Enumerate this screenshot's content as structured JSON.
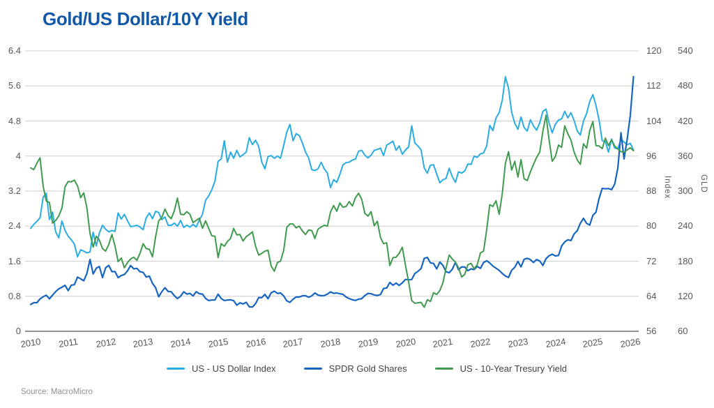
{
  "title": "Gold/US Dollar/10Y Yield",
  "source": "Source: MacroMicro",
  "colors": {
    "title": "#1159A8",
    "usd_index": "#29ACE3",
    "gld_shares": "#1565C0",
    "treasury_yield": "#3F9A4D",
    "grid": "#CECECE",
    "axis_line": "#6E6E6E",
    "tick_label": "#55575C",
    "legend_label": "#3F4248",
    "source_label": "#8A9099"
  },
  "axes": {
    "x": {
      "tick_labels": [
        "2010",
        "2011",
        "2012",
        "2013",
        "2014",
        "2015",
        "2016",
        "2017",
        "2018",
        "2019",
        "2020",
        "2021",
        "2022",
        "2023",
        "2024",
        "2025",
        "2026"
      ]
    },
    "yield": {
      "side": "left",
      "min": 0,
      "max": 6.4,
      "tick_labels": [
        "0",
        "0.8",
        "1.6",
        "2.4",
        "3.2",
        "4",
        "4.8",
        "5.6",
        "6.4"
      ]
    },
    "index": {
      "side": "right",
      "title": "Index",
      "min": 56,
      "max": 120,
      "tick_labels": [
        "56",
        "64",
        "72",
        "80",
        "88",
        "96",
        "104",
        "112",
        "120"
      ]
    },
    "gld": {
      "side": "right",
      "title": "GLD",
      "min": 60,
      "max": 540,
      "tick_labels": [
        "60",
        "120",
        "180",
        "240",
        "300",
        "360",
        "420",
        "480",
        "540"
      ]
    }
  },
  "legend": [
    {
      "label": "US - US Dollar Index",
      "color_key": "usd_index"
    },
    {
      "label": "SPDR Gold Shares",
      "color_key": "gld_shares"
    },
    {
      "label": "US - 10-Year Tresury Yield",
      "color_key": "treasury_yield"
    }
  ],
  "chart_data": {
    "type": "line",
    "title": "Gold/US Dollar/10Y Yield",
    "x_start_year": 2010,
    "x_step_years": 0.083333,
    "x_range": [
      2010,
      2026.1
    ],
    "grid": "horizontal",
    "legend_position": "bottom",
    "axis_ranges": {
      "yield": [
        0,
        6.4
      ],
      "index": [
        56,
        120
      ],
      "gld": [
        60,
        540
      ]
    },
    "series": [
      {
        "name": "US - US Dollar Index",
        "axis": "index",
        "color_key": "usd_index",
        "values": [
          79.5,
          80.4,
          81.1,
          81.9,
          86.6,
          87.5,
          81.5,
          83.2,
          78.7,
          77.3,
          81.2,
          79.0,
          77.7,
          76.9,
          75.9,
          73.0,
          74.6,
          74.3,
          73.9,
          74.1,
          78.6,
          75.5,
          78.4,
          80.2,
          79.3,
          78.7,
          79.0,
          78.8,
          83.0,
          81.6,
          82.7,
          81.2,
          79.9,
          80.0,
          80.2,
          79.8,
          79.2,
          81.9,
          83.0,
          81.7,
          83.4,
          83.1,
          81.5,
          82.1,
          80.2,
          80.2,
          80.7,
          80.0,
          81.3,
          79.7,
          80.2,
          79.8,
          80.4,
          79.8,
          81.4,
          82.7,
          85.9,
          86.9,
          88.3,
          90.3,
          94.8,
          95.3,
          99.5,
          94.6,
          96.9,
          95.5,
          97.3,
          95.8,
          96.3,
          96.9,
          100.2,
          98.6,
          99.6,
          98.2,
          94.6,
          93.1,
          95.9,
          96.1,
          95.5,
          96.0,
          95.5,
          98.4,
          101.5,
          103.2,
          99.5,
          101.1,
          100.7,
          99.0,
          96.9,
          95.6,
          92.9,
          92.7,
          93.1,
          94.6,
          93.1,
          92.1,
          88.8,
          90.6,
          90.0,
          91.8,
          94.0,
          94.5,
          94.6,
          95.1,
          95.3,
          97.1,
          97.3,
          96.2,
          95.6,
          96.2,
          97.3,
          97.5,
          97.8,
          96.1,
          98.5,
          98.9,
          99.4,
          97.3,
          98.3,
          96.4,
          97.4,
          98.1,
          102.9,
          99.0,
          98.3,
          97.4,
          93.3,
          92.1,
          93.9,
          94.0,
          91.9,
          89.9,
          90.6,
          90.9,
          93.2,
          91.3,
          90.0,
          92.4,
          92.1,
          92.6,
          94.2,
          94.1,
          96.0,
          95.7,
          96.5,
          96.7,
          98.3,
          103.0,
          101.8,
          104.7,
          105.9,
          108.8,
          114.1,
          111.5,
          106.0,
          103.5,
          102.1,
          104.9,
          102.5,
          101.7,
          104.3,
          102.9,
          101.9,
          103.6,
          106.2,
          106.7,
          103.5,
          101.3,
          103.3,
          104.2,
          104.5,
          106.2,
          104.7,
          105.9,
          104.1,
          101.7,
          100.8,
          104.0,
          105.7,
          108.5,
          110.0,
          107.6,
          104.2,
          99.5,
          99.3,
          96.9,
          99.9,
          97.8,
          97.7,
          99.8,
          99.2,
          98.6,
          98.9,
          97.4
        ]
      },
      {
        "name": "SPDR Gold Shares",
        "axis": "gld",
        "color_key": "gld_shares",
        "values": [
          106.0,
          109.0,
          108.9,
          115.4,
          119.1,
          121.7,
          115.5,
          122.0,
          128.0,
          132.6,
          135.4,
          138.7,
          129.6,
          138.7,
          139.9,
          152.8,
          149.8,
          146.5,
          158.9,
          183.0,
          158.1,
          167.9,
          170.9,
          151.9,
          168.6,
          172.8,
          162.1,
          162.3,
          151.8,
          155.4,
          157.2,
          163.5,
          172.6,
          167.0,
          167.7,
          162.0,
          160.8,
          152.9,
          154.5,
          142.0,
          134.6,
          119.1,
          127.8,
          134.6,
          128.2,
          127.7,
          120.9,
          116.1,
          120.1,
          127.6,
          123.7,
          124.8,
          120.5,
          127.7,
          124.4,
          123.8,
          116.2,
          112.7,
          113.5,
          113.6,
          123.5,
          116.2,
          112.7,
          113.5,
          113.9,
          112.4,
          104.8,
          108.7,
          106.8,
          109.5,
          101.9,
          101.5,
          107.3,
          117.8,
          117.6,
          123.2,
          115.6,
          126.0,
          128.6,
          125.0,
          125.6,
          120.7,
          112.0,
          109.6,
          114.9,
          118.7,
          118.6,
          120.6,
          120.9,
          118.3,
          120.7,
          125.5,
          122.0,
          120.9,
          121.2,
          123.7,
          127.5,
          125.0,
          125.7,
          124.2,
          123.3,
          118.6,
          116.0,
          114.0,
          112.8,
          115.1,
          115.9,
          121.3,
          124.8,
          124.2,
          122.2,
          121.2,
          123.0,
          133.3,
          134.2,
          143.7,
          138.8,
          142.5,
          138.4,
          143.0,
          148.8,
          148.0,
          148.7,
          158.9,
          162.6,
          167.4,
          184.8,
          186.5,
          177.1,
          176.2,
          166.7,
          178.4,
          172.7,
          162.0,
          160.2,
          166.3,
          178.0,
          165.4,
          170.2,
          170.0,
          163.8,
          166.9,
          165.7,
          171.0,
          167.7,
          177.6,
          180.7,
          176.9,
          171.6,
          168.1,
          164.2,
          159.0,
          154.7,
          152.3,
          164.4,
          169.6,
          179.7,
          170.2,
          183.2,
          184.9,
          182.6,
          177.8,
          182.9,
          180.3,
          172.7,
          184.3,
          189.3,
          191.9,
          188.9,
          189.8,
          206.2,
          212.9,
          216.6,
          215.3,
          226.7,
          232.2,
          244.9,
          253.4,
          244.7,
          241.9,
          258.6,
          263.7,
          287.6,
          304.7,
          303.9,
          304.4,
          302.5,
          311.9,
          339.8,
          399.8,
          355.0,
          389.0,
          430.0,
          496.0
        ]
      },
      {
        "name": "US - 10-Year Tresury Yield",
        "axis": "yield",
        "color_key": "treasury_yield",
        "values": [
          3.73,
          3.69,
          3.84,
          3.96,
          3.31,
          2.97,
          2.94,
          2.47,
          2.53,
          2.63,
          2.81,
          3.3,
          3.42,
          3.41,
          3.45,
          3.32,
          3.05,
          3.16,
          2.82,
          2.23,
          1.92,
          2.17,
          2.08,
          1.89,
          1.83,
          1.98,
          2.21,
          1.95,
          1.59,
          1.67,
          1.45,
          1.57,
          1.65,
          1.69,
          1.62,
          1.78,
          2.0,
          1.89,
          1.87,
          1.7,
          2.16,
          2.52,
          2.6,
          2.79,
          2.64,
          2.57,
          2.75,
          3.04,
          2.67,
          2.66,
          2.73,
          2.67,
          2.48,
          2.53,
          2.58,
          2.35,
          2.52,
          2.35,
          2.18,
          2.17,
          1.68,
          2.0,
          1.94,
          2.05,
          2.12,
          2.35,
          2.2,
          2.21,
          2.06,
          2.16,
          2.21,
          2.27,
          1.94,
          1.74,
          1.78,
          1.83,
          1.85,
          1.49,
          1.37,
          1.57,
          1.6,
          1.84,
          2.37,
          2.45,
          2.45,
          2.36,
          2.4,
          2.29,
          2.21,
          2.31,
          2.3,
          2.12,
          2.33,
          2.38,
          2.42,
          2.4,
          2.72,
          2.87,
          2.74,
          2.93,
          2.83,
          2.85,
          2.96,
          2.86,
          3.05,
          3.15,
          3.01,
          2.69,
          2.63,
          2.73,
          2.41,
          2.51,
          2.14,
          2.0,
          2.02,
          1.5,
          1.68,
          1.69,
          1.78,
          1.92,
          1.51,
          1.13,
          0.7,
          0.64,
          0.65,
          0.66,
          0.55,
          0.72,
          0.68,
          0.88,
          0.84,
          0.93,
          1.11,
          1.44,
          1.74,
          1.65,
          1.58,
          1.45,
          1.24,
          1.3,
          1.52,
          1.55,
          1.43,
          1.52,
          1.79,
          1.83,
          2.32,
          2.89,
          2.85,
          2.98,
          2.67,
          3.15,
          3.83,
          4.1,
          3.68,
          3.88,
          3.52,
          3.92,
          3.48,
          3.44,
          3.64,
          3.81,
          3.97,
          4.09,
          4.57,
          4.93,
          4.37,
          3.88,
          3.99,
          4.25,
          4.2,
          4.69,
          4.51,
          4.36,
          4.09,
          3.91,
          3.81,
          4.28,
          4.18,
          4.58,
          4.79,
          4.24,
          4.23,
          4.17,
          4.41,
          4.24,
          4.37,
          4.23,
          4.16,
          4.1,
          4.09,
          4.14,
          4.19,
          4.12
        ]
      }
    ]
  }
}
